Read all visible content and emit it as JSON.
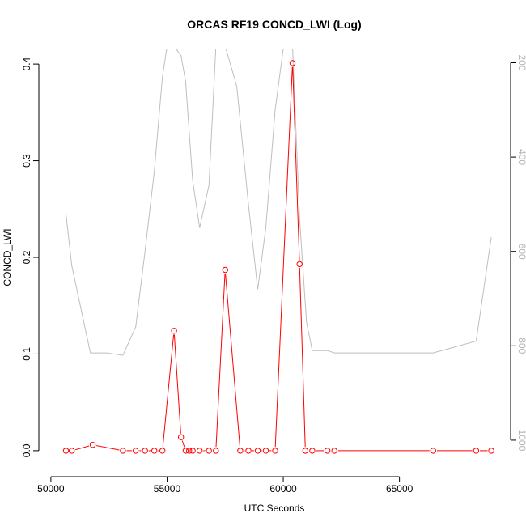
{
  "chart_data": {
    "type": "line",
    "title": "ORCAS RF19 CONCD_LWI (Log)",
    "xlabel": "UTC Seconds",
    "ylabel": "CONCD_LWI",
    "xlim": [
      49900,
      69400
    ],
    "ylim": [
      -0.016,
      0.416
    ],
    "y2lim": [
      1055,
      170
    ],
    "x_ticks": [
      "50000",
      "55000",
      "60000",
      "65000"
    ],
    "y_ticks": [
      "0.0",
      "0.1",
      "0.2",
      "0.3",
      "0.4"
    ],
    "y2_ticks": [
      "200",
      "400",
      "600",
      "800",
      "1000"
    ],
    "grid": false,
    "colors": {
      "primary": "#ff0000",
      "secondary": "#bebebe",
      "axis": "#000000"
    },
    "series": [
      {
        "axis": "left",
        "style": "line+markers",
        "color": "#ff0000",
        "x": [
          50650,
          50900,
          51800,
          53100,
          53650,
          54050,
          54450,
          54800,
          55300,
          55600,
          55800,
          55950,
          56100,
          56400,
          56800,
          57100,
          57500,
          58150,
          58500,
          58900,
          59250,
          59650,
          60400,
          60700,
          60950,
          61250,
          61900,
          62200,
          66450,
          68300,
          68950
        ],
        "y": [
          0.0,
          0.0,
          0.006,
          0.0,
          0.0,
          0.0,
          0.0,
          0.0,
          0.124,
          0.014,
          0.0,
          0.0,
          0.0,
          0.0,
          0.0,
          0.0,
          0.187,
          0.0,
          0.0,
          0.0,
          0.0,
          0.0,
          0.401,
          0.193,
          0.0,
          0.0,
          0.0,
          0.0,
          0.0,
          0.0,
          0.0
        ]
      },
      {
        "axis": "right",
        "style": "line",
        "color": "#bebebe",
        "x": [
          50650,
          50900,
          51700,
          52400,
          53100,
          53650,
          54050,
          54450,
          54800,
          55000,
          55300,
          55600,
          55800,
          56100,
          56400,
          56800,
          57100,
          57500,
          58000,
          58500,
          58900,
          59250,
          59650,
          60000,
          60400,
          60700,
          61000,
          61250,
          61900,
          62200,
          66450,
          68300,
          68950
        ],
        "y": [
          520,
          630,
          815,
          815,
          820,
          760,
          600,
          430,
          230,
          165,
          165,
          185,
          240,
          450,
          550,
          460,
          165,
          165,
          250,
          500,
          680,
          550,
          300,
          170,
          165,
          530,
          750,
          810,
          810,
          815,
          815,
          790,
          570
        ]
      }
    ]
  }
}
